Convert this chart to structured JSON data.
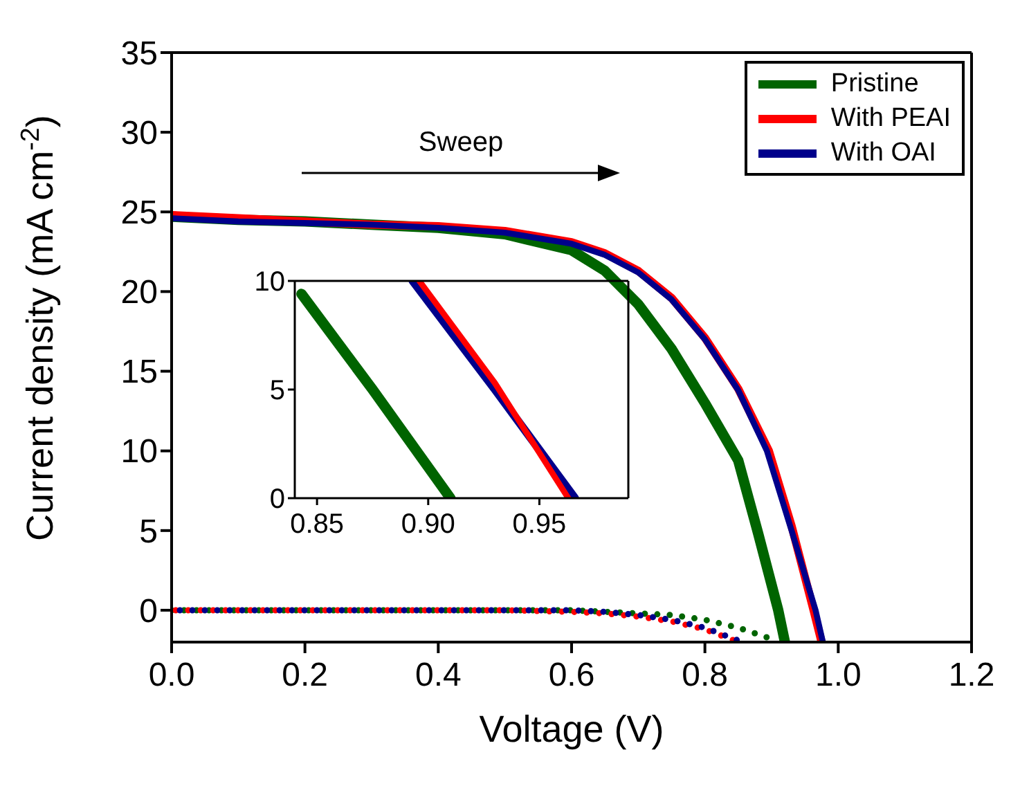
{
  "chart_data": [
    {
      "type": "line",
      "xlabel": "Voltage (V)",
      "ylabel": "Current density (mA cm$^{-2}$)",
      "xlim": [
        0,
        1.2
      ],
      "xticks": [
        {
          "value": 0,
          "label": "0.0"
        },
        {
          "value": 0.2,
          "label": "0.2"
        },
        {
          "value": 0.4,
          "label": "0.4"
        },
        {
          "value": 0.6,
          "label": "0.6"
        },
        {
          "value": 0.8,
          "label": "0.8"
        },
        {
          "value": 1,
          "label": "1.0"
        },
        {
          "value": 1.2,
          "label": "1.2"
        }
      ],
      "ylim": [
        -2,
        35
      ],
      "yticks": [
        0,
        5,
        10,
        15,
        20,
        25,
        30,
        35
      ],
      "grid": false,
      "legend": "top right",
      "annotations": [
        "Sweep"
      ],
      "series": [
        {
          "name": "Pristine",
          "color": "#006400",
          "line_style": "solid",
          "x": [
            0,
            0.1,
            0.2,
            0.3,
            0.4,
            0.5,
            0.6,
            0.65,
            0.7,
            0.75,
            0.8,
            0.85,
            0.88,
            0.91,
            0.92
          ],
          "values": [
            24.7,
            24.5,
            24.4,
            24.2,
            24.0,
            23.6,
            22.6,
            21.3,
            19.2,
            16.4,
            13.0,
            9.4,
            4.8,
            0,
            -2
          ]
        },
        {
          "name": "With PEAI",
          "color": "#ff0000",
          "line_style": "solid",
          "x": [
            0,
            0.1,
            0.2,
            0.3,
            0.4,
            0.5,
            0.6,
            0.65,
            0.7,
            0.75,
            0.8,
            0.85,
            0.896,
            0.93,
            0.963,
            0.975
          ],
          "values": [
            24.8,
            24.6,
            24.4,
            24.2,
            24.1,
            23.8,
            23.1,
            22.4,
            21.3,
            19.6,
            17.1,
            13.9,
            10,
            5.3,
            0,
            -2
          ]
        },
        {
          "name": "With OAI",
          "color": "#00008b",
          "line_style": "solid",
          "x": [
            0,
            0.1,
            0.2,
            0.3,
            0.4,
            0.5,
            0.6,
            0.65,
            0.7,
            0.75,
            0.8,
            0.85,
            0.893,
            0.93,
            0.966,
            0.977
          ],
          "values": [
            24.6,
            24.4,
            24.3,
            24.2,
            24.0,
            23.7,
            23.0,
            22.3,
            21.2,
            19.5,
            17.0,
            13.8,
            10,
            5,
            0,
            -2
          ]
        },
        {
          "color": "#006400",
          "line_style": "dotted",
          "x": [
            0,
            0.1,
            0.2,
            0.3,
            0.4,
            0.5,
            0.6,
            0.65,
            0.7,
            0.75,
            0.8,
            0.85,
            0.9
          ],
          "values": [
            0,
            0,
            0,
            0,
            0,
            0,
            0,
            -0.1,
            -0.2,
            -0.3,
            -0.6,
            -1.1,
            -1.8
          ]
        },
        {
          "color": "#ff0000",
          "line_style": "dotted",
          "x": [
            0,
            0.1,
            0.2,
            0.3,
            0.4,
            0.5,
            0.6,
            0.65,
            0.7,
            0.75,
            0.8,
            0.85
          ],
          "values": [
            0,
            0,
            0,
            0,
            0,
            0,
            -0.1,
            -0.2,
            -0.4,
            -0.7,
            -1.2,
            -2
          ]
        },
        {
          "color": "#00008b",
          "line_style": "dotted",
          "x": [
            0,
            0.1,
            0.2,
            0.3,
            0.4,
            0.5,
            0.6,
            0.65,
            0.7,
            0.75,
            0.8,
            0.85
          ],
          "values": [
            0,
            0,
            0,
            0,
            0,
            0,
            0,
            -0.1,
            -0.3,
            -0.6,
            -1.1,
            -1.9
          ]
        }
      ]
    },
    {
      "type": "line",
      "xlim": [
        0.84,
        0.99
      ],
      "xticks": [
        0.85,
        {
          "value": 0.9,
          "label": "0.90"
        },
        0.95
      ],
      "ylim": [
        0,
        10
      ],
      "yticks": [
        0,
        5,
        10
      ],
      "grid": false,
      "series": [
        {
          "color": "#006400",
          "x": [
            0.843,
            0.875,
            0.91
          ],
          "values": [
            9.4,
            5,
            0
          ]
        },
        {
          "color": "#00008b",
          "x": [
            0.893,
            0.93,
            0.966
          ],
          "values": [
            10,
            5,
            0
          ]
        },
        {
          "color": "#ff0000",
          "x": [
            0.896,
            0.93,
            0.963
          ],
          "values": [
            10,
            5.3,
            0
          ]
        }
      ]
    }
  ]
}
